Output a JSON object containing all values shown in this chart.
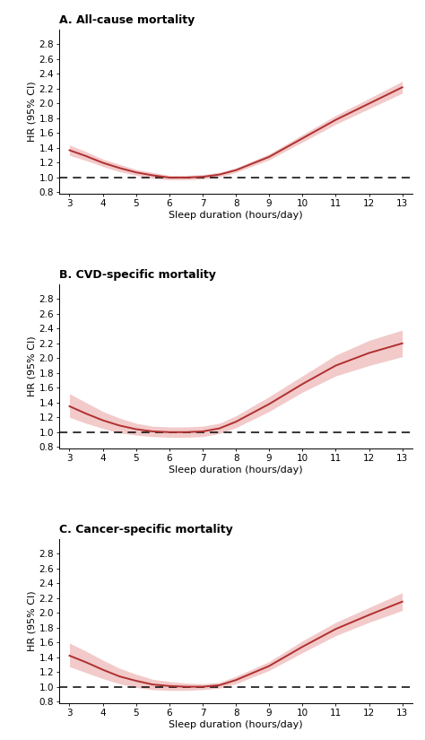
{
  "x_values": [
    3,
    3.5,
    4,
    4.5,
    5,
    5.5,
    6,
    6.5,
    7,
    7.5,
    8,
    9,
    10,
    11,
    12,
    13
  ],
  "hr_A": [
    1.37,
    1.29,
    1.2,
    1.13,
    1.07,
    1.03,
    1.0,
    1.0,
    1.01,
    1.04,
    1.1,
    1.28,
    1.53,
    1.78,
    2.0,
    2.22
  ],
  "ci_low_A": [
    1.3,
    1.23,
    1.15,
    1.08,
    1.03,
    0.99,
    0.97,
    0.97,
    0.98,
    1.01,
    1.07,
    1.24,
    1.48,
    1.72,
    1.93,
    2.14
  ],
  "ci_high_A": [
    1.44,
    1.35,
    1.25,
    1.18,
    1.11,
    1.07,
    1.03,
    1.03,
    1.04,
    1.07,
    1.13,
    1.32,
    1.58,
    1.84,
    2.07,
    2.3
  ],
  "hr_B": [
    1.35,
    1.25,
    1.16,
    1.09,
    1.04,
    1.01,
    1.0,
    1.0,
    1.01,
    1.05,
    1.14,
    1.38,
    1.65,
    1.9,
    2.07,
    2.2
  ],
  "ci_low_B": [
    1.2,
    1.12,
    1.05,
    0.99,
    0.96,
    0.94,
    0.93,
    0.93,
    0.94,
    0.98,
    1.06,
    1.28,
    1.54,
    1.76,
    1.9,
    2.02
  ],
  "ci_high_B": [
    1.52,
    1.4,
    1.28,
    1.19,
    1.12,
    1.08,
    1.07,
    1.07,
    1.08,
    1.12,
    1.22,
    1.48,
    1.76,
    2.04,
    2.24,
    2.38
  ],
  "hr_C": [
    1.42,
    1.33,
    1.23,
    1.14,
    1.08,
    1.03,
    1.01,
    1.0,
    1.0,
    1.02,
    1.09,
    1.28,
    1.54,
    1.78,
    1.97,
    2.15
  ],
  "ci_low_C": [
    1.27,
    1.19,
    1.11,
    1.04,
    0.99,
    0.96,
    0.95,
    0.95,
    0.96,
    0.98,
    1.04,
    1.22,
    1.46,
    1.69,
    1.87,
    2.03
  ],
  "ci_high_C": [
    1.59,
    1.48,
    1.36,
    1.25,
    1.17,
    1.1,
    1.07,
    1.05,
    1.04,
    1.06,
    1.14,
    1.34,
    1.62,
    1.87,
    2.07,
    2.27
  ],
  "line_color": "#b03030",
  "fill_color": "#e8a0a0",
  "fill_alpha": 0.55,
  "dashed_color": "#000000",
  "background_color": "#ffffff",
  "xlabel": "Sleep duration (hours/day)",
  "ylabel": "HR (95% CI)",
  "titles": [
    "A. All-cause mortality",
    "B. CVD-specific mortality",
    "C. Cancer-specific mortality"
  ],
  "xlim": [
    2.7,
    13.3
  ],
  "ylim": [
    0.78,
    3.0
  ],
  "yticks": [
    0.8,
    1.0,
    1.2,
    1.4,
    1.6,
    1.8,
    2.0,
    2.2,
    2.4,
    2.6,
    2.8
  ],
  "xticks": [
    3,
    4,
    5,
    6,
    7,
    8,
    9,
    10,
    11,
    12,
    13
  ],
  "title_fontsize": 9,
  "label_fontsize": 8,
  "tick_fontsize": 7.5
}
